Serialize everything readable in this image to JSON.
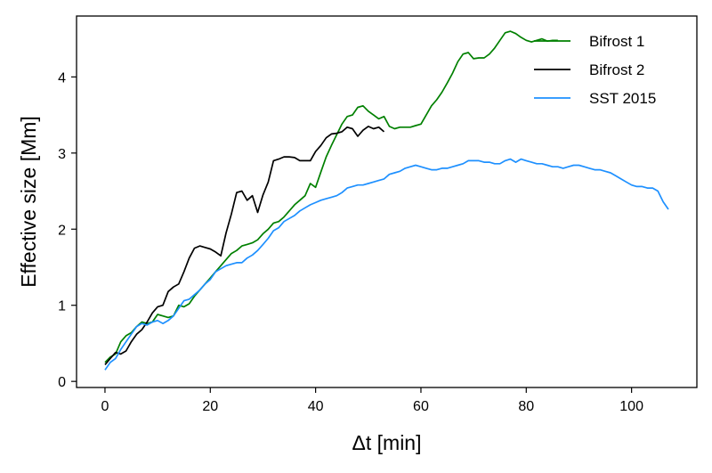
{
  "chart_data": {
    "type": "line",
    "xlabel": "Δt [min]",
    "ylabel": "Effective size [Mm]",
    "xlim": [
      -5.4,
      112.4
    ],
    "ylim": [
      -0.08,
      4.8
    ],
    "xticks": [
      0,
      20,
      40,
      60,
      80,
      100
    ],
    "yticks": [
      0,
      1,
      2,
      3,
      4
    ],
    "grid": false,
    "legend_position": "top-right",
    "series": [
      {
        "name": "Bifrost 1",
        "color": "#008000",
        "x": [
          0,
          1,
          2,
          3,
          4,
          5,
          6,
          7,
          8,
          9,
          10,
          11,
          12,
          13,
          14,
          15,
          16,
          17,
          18,
          19,
          20,
          21,
          22,
          23,
          24,
          25,
          26,
          27,
          28,
          29,
          30,
          31,
          32,
          33,
          34,
          35,
          36,
          37,
          38,
          39,
          40,
          41,
          42,
          43,
          44,
          45,
          46,
          47,
          48,
          49,
          50,
          51,
          52,
          53,
          54,
          55,
          56,
          57,
          58,
          59,
          60,
          61,
          62,
          63,
          64,
          65,
          66,
          67,
          68,
          69,
          70,
          71,
          72,
          73,
          74,
          75,
          76,
          77,
          78,
          79,
          80,
          81,
          82,
          83,
          84,
          85,
          86
        ],
        "values": [
          0.25,
          0.32,
          0.36,
          0.52,
          0.6,
          0.64,
          0.72,
          0.78,
          0.76,
          0.78,
          0.88,
          0.86,
          0.84,
          0.86,
          1.0,
          0.98,
          1.02,
          1.12,
          1.2,
          1.28,
          1.36,
          1.44,
          1.52,
          1.6,
          1.68,
          1.72,
          1.78,
          1.8,
          1.82,
          1.86,
          1.94,
          2.0,
          2.08,
          2.1,
          2.16,
          2.24,
          2.32,
          2.38,
          2.44,
          2.6,
          2.55,
          2.75,
          2.95,
          3.1,
          3.24,
          3.38,
          3.48,
          3.5,
          3.6,
          3.62,
          3.55,
          3.5,
          3.45,
          3.48,
          3.35,
          3.32,
          3.34,
          3.34,
          3.34,
          3.36,
          3.38,
          3.5,
          3.62,
          3.7,
          3.8,
          3.92,
          4.05,
          4.2,
          4.3,
          4.32,
          4.24,
          4.25,
          4.25,
          4.3,
          4.38,
          4.48,
          4.58,
          4.6,
          4.57,
          4.52,
          4.48,
          4.46,
          4.48,
          4.5,
          4.47,
          4.48,
          4.48
        ]
      },
      {
        "name": "Bifrost 2",
        "color": "#000000",
        "x": [
          0,
          1,
          2,
          3,
          4,
          5,
          6,
          7,
          8,
          9,
          10,
          11,
          12,
          13,
          14,
          15,
          16,
          17,
          18,
          19,
          20,
          21,
          22,
          23,
          24,
          25,
          26,
          27,
          28,
          29,
          30,
          31,
          32,
          33,
          34,
          35,
          36,
          37,
          38,
          39,
          40,
          41,
          42,
          43,
          44,
          45,
          46,
          47,
          48,
          49,
          50,
          51,
          52,
          53
        ],
        "values": [
          0.22,
          0.3,
          0.38,
          0.36,
          0.4,
          0.52,
          0.62,
          0.68,
          0.78,
          0.9,
          0.98,
          1.0,
          1.18,
          1.24,
          1.28,
          1.44,
          1.62,
          1.75,
          1.78,
          1.76,
          1.74,
          1.7,
          1.65,
          1.95,
          2.2,
          2.48,
          2.5,
          2.38,
          2.44,
          2.22,
          2.45,
          2.62,
          2.9,
          2.92,
          2.95,
          2.95,
          2.94,
          2.9,
          2.9,
          2.9,
          3.02,
          3.1,
          3.2,
          3.25,
          3.26,
          3.28,
          3.34,
          3.32,
          3.22,
          3.3,
          3.35,
          3.32,
          3.34,
          3.28
        ]
      },
      {
        "name": "SST 2015",
        "color": "#1E90FF",
        "x": [
          0,
          1,
          2,
          3,
          4,
          5,
          6,
          7,
          8,
          9,
          10,
          11,
          12,
          13,
          14,
          15,
          16,
          17,
          18,
          19,
          20,
          21,
          22,
          23,
          24,
          25,
          26,
          27,
          28,
          29,
          30,
          31,
          32,
          33,
          34,
          35,
          36,
          37,
          38,
          39,
          40,
          41,
          42,
          43,
          44,
          45,
          46,
          47,
          48,
          49,
          50,
          51,
          52,
          53,
          54,
          55,
          56,
          57,
          58,
          59,
          60,
          61,
          62,
          63,
          64,
          65,
          66,
          67,
          68,
          69,
          70,
          71,
          72,
          73,
          74,
          75,
          76,
          77,
          78,
          79,
          80,
          81,
          82,
          83,
          84,
          85,
          86,
          87,
          88,
          89,
          90,
          91,
          92,
          93,
          94,
          95,
          96,
          97,
          98,
          99,
          100,
          101,
          102,
          103,
          104,
          105,
          106,
          107
        ],
        "values": [
          0.15,
          0.25,
          0.3,
          0.42,
          0.52,
          0.62,
          0.72,
          0.76,
          0.74,
          0.78,
          0.8,
          0.76,
          0.8,
          0.86,
          0.96,
          1.06,
          1.08,
          1.14,
          1.2,
          1.28,
          1.34,
          1.44,
          1.48,
          1.52,
          1.54,
          1.56,
          1.56,
          1.62,
          1.66,
          1.72,
          1.8,
          1.88,
          1.98,
          2.02,
          2.1,
          2.14,
          2.18,
          2.24,
          2.28,
          2.32,
          2.35,
          2.38,
          2.4,
          2.42,
          2.44,
          2.48,
          2.54,
          2.56,
          2.58,
          2.58,
          2.6,
          2.62,
          2.64,
          2.66,
          2.72,
          2.74,
          2.76,
          2.8,
          2.82,
          2.84,
          2.82,
          2.8,
          2.78,
          2.78,
          2.8,
          2.8,
          2.82,
          2.84,
          2.86,
          2.9,
          2.9,
          2.9,
          2.88,
          2.88,
          2.86,
          2.86,
          2.9,
          2.92,
          2.88,
          2.92,
          2.9,
          2.88,
          2.86,
          2.86,
          2.84,
          2.82,
          2.82,
          2.8,
          2.82,
          2.84,
          2.84,
          2.82,
          2.8,
          2.78,
          2.78,
          2.76,
          2.74,
          2.7,
          2.66,
          2.62,
          2.58,
          2.56,
          2.56,
          2.54,
          2.54,
          2.5,
          2.36,
          2.26
        ]
      }
    ]
  }
}
